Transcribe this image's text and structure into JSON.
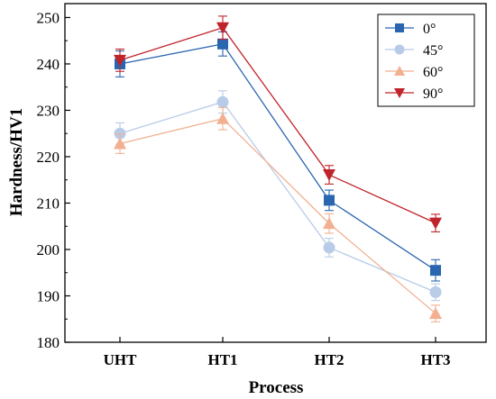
{
  "chart_data": {
    "type": "line",
    "title": "",
    "xlabel": "Process",
    "ylabel": "Hardness/HV1",
    "categories": [
      "UHT",
      "HT1",
      "HT2",
      "HT3"
    ],
    "ylim": [
      180,
      253
    ],
    "yticks": [
      180,
      190,
      200,
      210,
      220,
      230,
      240,
      250
    ],
    "grid": false,
    "legend": "top-right",
    "series": [
      {
        "name": "0°",
        "marker": "square",
        "color": "#2a66b0",
        "values": [
          240,
          244.3,
          210.6,
          195.5
        ],
        "errors": [
          2.8,
          2.6,
          2.2,
          2.3
        ]
      },
      {
        "name": "45°",
        "marker": "circle",
        "color": "#b8cce8",
        "values": [
          225,
          231.8,
          200.4,
          190.8
        ],
        "errors": [
          2.3,
          2.4,
          2.0,
          1.8
        ]
      },
      {
        "name": "60°",
        "marker": "triangle-up",
        "color": "#f2b090",
        "values": [
          222.8,
          228.2,
          205.6,
          186.2
        ],
        "errors": [
          2.1,
          2.4,
          2.1,
          1.8
        ]
      },
      {
        "name": "90°",
        "marker": "triangle-down",
        "color": "#c0242b",
        "values": [
          240.8,
          247.8,
          216.1,
          205.7
        ],
        "errors": [
          2.4,
          2.5,
          2.0,
          1.9
        ]
      }
    ]
  }
}
